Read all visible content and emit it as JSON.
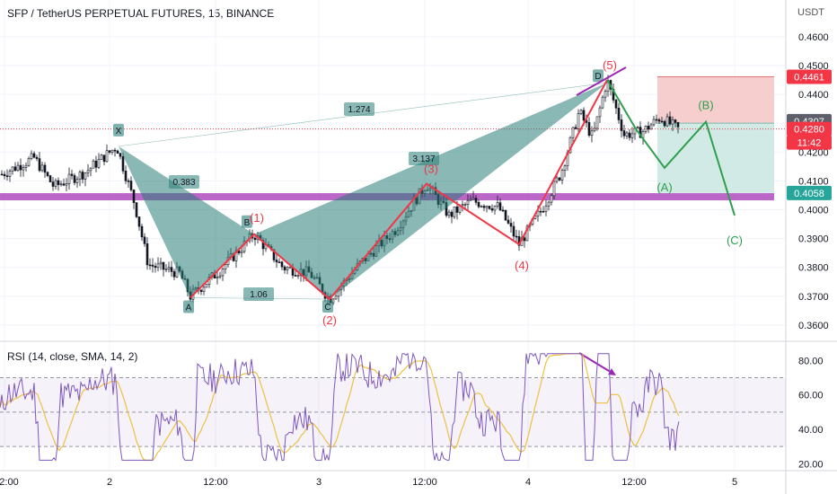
{
  "header": {
    "symbol_title": "SFP / TetherUS PERPETUAL FUTURES, 15, BINANCE",
    "currency": "USDT"
  },
  "rsi_panel": {
    "title": "RSI (14, close, SMA, 14, 2)"
  },
  "colors": {
    "pattern_fill": "#2a7d78",
    "wave_red": "#f23645",
    "wave_green": "#2e9e4f",
    "divergence_purple": "#9c27b0",
    "support_band": "#9c27b0",
    "rsi_line": "#7e57c2",
    "rsi_ma": "#f0c040",
    "candle_body": "#131722",
    "loss_zone": "#f5c6c6",
    "profit_zone": "#cde8e2"
  },
  "chart_data": [
    {
      "type": "candlestick",
      "price_axis": {
        "ticks": [
          "0.4600",
          "0.4500",
          "0.4400",
          "0.4300",
          "0.4200",
          "0.4100",
          "0.4000",
          "0.3900",
          "0.3800",
          "0.3700",
          "0.3600"
        ],
        "range": [
          0.355,
          0.464
        ]
      },
      "time_axis": {
        "ticks": [
          "2:00",
          "2",
          "12:00",
          "3",
          "12:00",
          "4",
          "12:00",
          "5"
        ]
      },
      "price_labels": [
        {
          "value": "0.4461",
          "kind": "stop"
        },
        {
          "value": "0.4307",
          "kind": "last-high"
        },
        {
          "value": "0.4280",
          "kind": "current"
        },
        {
          "value": "11:42",
          "kind": "countdown"
        },
        {
          "value": "0.4058",
          "kind": "target"
        }
      ],
      "xabcd_points": [
        {
          "label": "X",
          "price": 0.422
        },
        {
          "label": "A",
          "price": 0.3695
        },
        {
          "label": "B",
          "price": 0.3915
        },
        {
          "label": "C",
          "price": 0.369
        },
        {
          "label": "D",
          "price": 0.444
        }
      ],
      "fib_ratios": [
        "0.383",
        "1.06",
        "3.137",
        "1.274"
      ],
      "impulse_waves": [
        {
          "label": "(1)",
          "price": 0.3915
        },
        {
          "label": "(2)",
          "price": 0.369
        },
        {
          "label": "(3)",
          "price": 0.409
        },
        {
          "label": "(4)",
          "price": 0.388
        },
        {
          "label": "(5)",
          "price": 0.445
        }
      ],
      "correction_waves": [
        {
          "label": "(A)",
          "price": 0.4145
        },
        {
          "label": "(B)",
          "price": 0.4305
        },
        {
          "label": "(C)",
          "price": 0.398
        }
      ],
      "support_band_price": 0.4045
    },
    {
      "type": "line",
      "indicator": "RSI",
      "ticks": [
        "80.00",
        "60.00",
        "40.00",
        "20.00"
      ],
      "range": [
        17,
        87
      ],
      "levels": [
        70,
        50,
        30
      ]
    }
  ]
}
